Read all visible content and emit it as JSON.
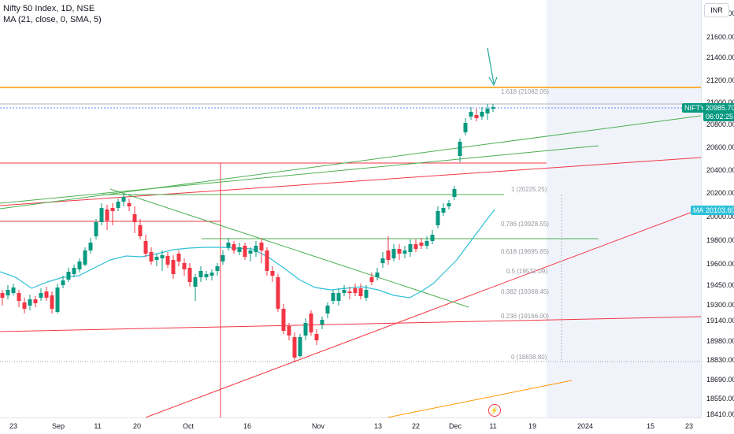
{
  "legend": {
    "title": "Nifty 50 Index, 1D, NSE",
    "ma": "MA (21, close, 0, SMA, 5)"
  },
  "currency": "INR",
  "price_axis": [
    "21800.00",
    "21600.00",
    "21400.00",
    "21200.00",
    "21000.00",
    "20800.00",
    "20600.00",
    "20400.00",
    "20200.00",
    "20000.00",
    "19800.00",
    "19600.00",
    "19450.00",
    "19300.00",
    "19140.00",
    "18980.00",
    "18830.00",
    "18690.00",
    "18550.00",
    "18410.00"
  ],
  "time_axis": [
    "23",
    "Sep",
    "11",
    "20",
    "Oct",
    "16",
    "Nov",
    "13",
    "22",
    "Dec",
    "11",
    "19",
    "2024",
    "15",
    "23"
  ],
  "price_tags": {
    "symbol": "NIFTY",
    "last": "20985.70",
    "countdown": "06:02:25",
    "ma_label": "MA",
    "ma_value": "20103.60"
  },
  "fib_levels": [
    "1.618 (21082.05)",
    "1 (20225.25)",
    "0.786 (19928.55)",
    "0.618 (19695.65)",
    "0.5 (19532.09)",
    "0.382 (19368.45)",
    "0.236 (19166.00)",
    "0 (18838.80)"
  ],
  "colors": {
    "up": "#089981",
    "down": "#f23645",
    "ma": "#2ec0d8",
    "tag": "#089981",
    "orange": "#ff9800"
  },
  "icons": {
    "event": "lightning-icon",
    "annotation": "arrow-down-icon"
  }
}
